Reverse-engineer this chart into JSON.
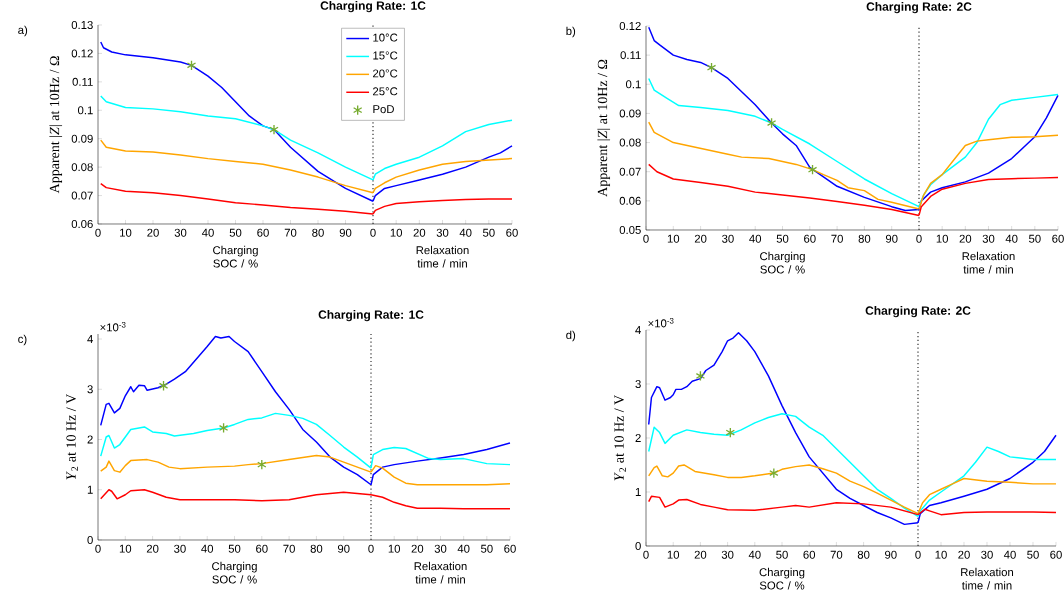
{
  "chart_data": [
    {
      "type": "line",
      "title": "Charging Rate: 1C",
      "ylabel": "Apparent |*Z*| at 10Hz / Ω",
      "xlabel": "Charging SOC / %",
      "annotations": [
        "a)"
      ],
      "xlim": [
        0,
        100
      ],
      "xticks": [
        0,
        10,
        20,
        30,
        40,
        50,
        60,
        70,
        80,
        90
      ],
      "ylim": [
        0.06,
        0.13
      ],
      "yticks": [
        0.06,
        0.07,
        0.08,
        0.09,
        0.1,
        0.11,
        0.12,
        0.13
      ],
      "legend": "top right",
      "ref_lines": [
        {
          "axis": "x",
          "value": 100,
          "line_style": "dotted",
          "color": "#333333"
        }
      ],
      "series": [
        {
          "name": "10°C",
          "color": "#0000ff",
          "x": [
            1,
            2,
            5,
            10,
            20,
            30,
            34,
            40,
            45,
            50,
            55,
            60,
            64,
            70,
            80,
            90,
            100
          ],
          "values": [
            0.124,
            0.122,
            0.1205,
            0.1195,
            0.1185,
            0.117,
            0.1158,
            0.112,
            0.108,
            0.103,
            0.098,
            0.0945,
            0.0932,
            0.087,
            0.0785,
            0.0725,
            0.068
          ]
        },
        {
          "name": "15°C",
          "color": "#00ffff",
          "x": [
            1,
            3,
            10,
            20,
            30,
            40,
            50,
            60,
            64,
            70,
            80,
            90,
            100
          ],
          "values": [
            0.105,
            0.103,
            0.101,
            0.1005,
            0.0995,
            0.098,
            0.097,
            0.0945,
            0.0932,
            0.0895,
            0.085,
            0.08,
            0.0755
          ]
        },
        {
          "name": "20°C",
          "color": "#ffa500",
          "x": [
            1,
            3,
            10,
            20,
            30,
            40,
            50,
            60,
            70,
            80,
            90,
            100
          ],
          "values": [
            0.0895,
            0.087,
            0.0857,
            0.0853,
            0.0843,
            0.083,
            0.082,
            0.081,
            0.079,
            0.0765,
            0.0735,
            0.071
          ]
        },
        {
          "name": "25°C",
          "color": "#ff0000",
          "x": [
            1,
            3,
            10,
            20,
            30,
            40,
            50,
            60,
            70,
            80,
            90,
            100
          ],
          "values": [
            0.0742,
            0.0728,
            0.0715,
            0.071,
            0.07,
            0.0688,
            0.0675,
            0.0667,
            0.0658,
            0.0652,
            0.0645,
            0.0635
          ]
        },
        {
          "name": "PoD",
          "type": "scatter",
          "marker": "cross",
          "color": "#77ac30",
          "x": [
            34,
            64
          ],
          "values": [
            0.1158,
            0.0932
          ]
        }
      ]
    },
    {
      "type": "line",
      "xlabel": "Relaxation time / min",
      "xlim": [
        0,
        60
      ],
      "xticks": [
        0,
        10,
        20,
        30,
        40,
        50,
        60
      ],
      "ylim": [
        0.06,
        0.13
      ],
      "tick_labels": "x",
      "series": [
        {
          "color": "#0000ff",
          "x": [
            0,
            1,
            5,
            10,
            20,
            30,
            40,
            50,
            55,
            60
          ],
          "values": [
            0.068,
            0.07,
            0.0725,
            0.0735,
            0.0755,
            0.0775,
            0.08,
            0.0835,
            0.085,
            0.0875
          ]
        },
        {
          "color": "#00ffff",
          "x": [
            0,
            1,
            5,
            10,
            20,
            30,
            40,
            50,
            60
          ],
          "values": [
            0.0755,
            0.0775,
            0.0795,
            0.081,
            0.0835,
            0.0875,
            0.0925,
            0.095,
            0.0965
          ]
        },
        {
          "color": "#ffa500",
          "x": [
            0,
            1,
            5,
            10,
            20,
            30,
            40,
            50,
            60
          ],
          "values": [
            0.071,
            0.0725,
            0.0745,
            0.0765,
            0.079,
            0.081,
            0.082,
            0.0825,
            0.083
          ]
        },
        {
          "color": "#ff0000",
          "x": [
            0,
            1,
            5,
            10,
            20,
            30,
            40,
            50,
            60
          ],
          "values": [
            0.0635,
            0.0648,
            0.0662,
            0.0672,
            0.0678,
            0.0683,
            0.0686,
            0.0688,
            0.0688
          ]
        }
      ]
    },
    {
      "type": "line",
      "title": "Charging Rate: 2C",
      "ylabel": "Apparent |*Z*| at 10Hz / Ω",
      "xlabel": "Charging SOC / %",
      "annotations": [
        "b)"
      ],
      "xlim": [
        0,
        100
      ],
      "xticks": [
        0,
        10,
        20,
        30,
        40,
        50,
        60,
        70,
        80,
        90
      ],
      "ylim": [
        0.05,
        0.12
      ],
      "yticks": [
        0.05,
        0.06,
        0.07,
        0.08,
        0.09,
        0.1,
        0.11,
        0.12
      ],
      "ref_lines": [
        {
          "axis": "x",
          "value": 100,
          "line_style": "dotted",
          "color": "#333333"
        }
      ],
      "series": [
        {
          "color": "#0000ff",
          "x": [
            1,
            3,
            5,
            10,
            15,
            20,
            24,
            30,
            40,
            46,
            50,
            55,
            60,
            70,
            80,
            90,
            95,
            100
          ],
          "values": [
            0.1196,
            0.115,
            0.1135,
            0.11,
            0.1085,
            0.1075,
            0.1057,
            0.102,
            0.093,
            0.0867,
            0.083,
            0.079,
            0.0715,
            0.065,
            0.0612,
            0.058,
            0.0567,
            0.057
          ]
        },
        {
          "color": "#00ffff",
          "x": [
            1,
            3,
            8,
            12,
            20,
            30,
            40,
            46,
            50,
            60,
            70,
            80,
            90,
            100
          ],
          "values": [
            0.102,
            0.098,
            0.095,
            0.0927,
            0.092,
            0.091,
            0.089,
            0.0867,
            0.0845,
            0.0795,
            0.0735,
            0.0675,
            0.0625,
            0.058
          ]
        },
        {
          "color": "#ffa500",
          "x": [
            1,
            3,
            10,
            20,
            30,
            35,
            45,
            55,
            61,
            65,
            70,
            74,
            80,
            85,
            90,
            100
          ],
          "values": [
            0.087,
            0.0835,
            0.08,
            0.078,
            0.076,
            0.075,
            0.0745,
            0.0725,
            0.0707,
            0.069,
            0.067,
            0.0645,
            0.0635,
            0.0605,
            0.0595,
            0.0572
          ]
        },
        {
          "color": "#ff0000",
          "x": [
            1,
            4,
            10,
            20,
            30,
            40,
            50,
            60,
            70,
            80,
            90,
            100
          ],
          "values": [
            0.0725,
            0.07,
            0.0675,
            0.0663,
            0.065,
            0.063,
            0.062,
            0.061,
            0.0598,
            0.0585,
            0.057,
            0.055
          ]
        },
        {
          "type": "scatter",
          "marker": "cross",
          "color": "#77ac30",
          "x": [
            24,
            46,
            61
          ],
          "values": [
            0.1057,
            0.0867,
            0.0707
          ]
        }
      ]
    },
    {
      "type": "line",
      "xlabel": "Relaxation time / min",
      "xlim": [
        0,
        60
      ],
      "xticks": [
        0,
        10,
        20,
        30,
        40,
        50,
        60
      ],
      "ylim": [
        0.05,
        0.12
      ],
      "tick_labels": "x",
      "series": [
        {
          "color": "#0000ff",
          "x": [
            0,
            1,
            5,
            10,
            20,
            30,
            40,
            50,
            55,
            60
          ],
          "values": [
            0.057,
            0.06,
            0.063,
            0.0645,
            0.0665,
            0.0695,
            0.0745,
            0.082,
            0.0885,
            0.0962
          ]
        },
        {
          "color": "#00ffff",
          "x": [
            0,
            2,
            5,
            10,
            20,
            25,
            30,
            35,
            40,
            50,
            60
          ],
          "values": [
            0.058,
            0.062,
            0.0655,
            0.069,
            0.075,
            0.08,
            0.088,
            0.093,
            0.0945,
            0.0955,
            0.0965
          ]
        },
        {
          "color": "#ffa500",
          "x": [
            0,
            2,
            5,
            10,
            15,
            20,
            25,
            30,
            40,
            50,
            60
          ],
          "values": [
            0.0572,
            0.062,
            0.066,
            0.069,
            0.074,
            0.079,
            0.0805,
            0.081,
            0.0818,
            0.082,
            0.0825
          ]
        },
        {
          "color": "#ff0000",
          "x": [
            0,
            1,
            5,
            10,
            20,
            30,
            40,
            50,
            60
          ],
          "values": [
            0.055,
            0.058,
            0.0615,
            0.064,
            0.066,
            0.0673,
            0.0676,
            0.0678,
            0.068
          ]
        }
      ]
    },
    {
      "type": "line",
      "title": "Charging Rate: 1C",
      "ylabel": "*Y*$_{2}$ at 10 Hz / V",
      "xlabel": "Charging SOC / %",
      "annotations": [
        "c)",
        "×10$^{-3}$"
      ],
      "xlim": [
        0,
        100
      ],
      "xticks": [
        0,
        10,
        20,
        30,
        40,
        50,
        60,
        70,
        80,
        90
      ],
      "ylim": [
        0,
        4.1
      ],
      "yticks": [
        0,
        1,
        2,
        3,
        4
      ],
      "ref_lines": [
        {
          "axis": "x",
          "value": 100,
          "line_style": "dotted",
          "color": "#333333"
        }
      ],
      "series": [
        {
          "color": "#0000ff",
          "x": [
            1,
            3,
            4,
            6,
            8,
            10,
            12,
            13,
            15,
            17,
            18,
            22,
            25,
            28,
            32,
            40,
            43,
            45,
            48,
            50,
            55,
            60,
            65,
            70,
            75,
            80,
            85,
            90,
            95,
            100
          ],
          "values": [
            2.28,
            2.7,
            2.72,
            2.53,
            2.62,
            2.87,
            3.05,
            2.95,
            3.08,
            3.07,
            2.98,
            3.03,
            3.1,
            3.2,
            3.35,
            3.85,
            4.05,
            4.02,
            4.05,
            3.95,
            3.75,
            3.35,
            2.95,
            2.6,
            2.2,
            1.95,
            1.65,
            1.45,
            1.3,
            1.1
          ]
        },
        {
          "color": "#00ffff",
          "x": [
            1,
            3,
            4,
            6,
            8,
            10,
            12,
            17,
            20,
            25,
            28,
            35,
            40,
            46,
            50,
            55,
            60,
            65,
            70,
            75,
            80,
            85,
            90,
            95,
            100
          ],
          "values": [
            1.67,
            2.05,
            2.08,
            1.83,
            1.9,
            2.05,
            2.2,
            2.25,
            2.15,
            2.12,
            2.07,
            2.12,
            2.18,
            2.23,
            2.3,
            2.4,
            2.43,
            2.52,
            2.48,
            2.42,
            2.3,
            2.08,
            1.85,
            1.65,
            1.43
          ]
        },
        {
          "color": "#ffa500",
          "x": [
            1,
            3,
            4,
            6,
            8,
            10,
            12,
            18,
            22,
            26,
            30,
            40,
            50,
            55,
            60,
            70,
            80,
            85,
            90,
            100
          ],
          "values": [
            1.37,
            1.45,
            1.57,
            1.38,
            1.35,
            1.48,
            1.58,
            1.6,
            1.55,
            1.45,
            1.42,
            1.45,
            1.47,
            1.5,
            1.52,
            1.6,
            1.68,
            1.65,
            1.55,
            1.35
          ]
        },
        {
          "color": "#ff0000",
          "x": [
            1,
            4,
            5,
            7,
            10,
            12,
            17,
            20,
            25,
            30,
            40,
            50,
            60,
            70,
            80,
            90,
            100
          ],
          "values": [
            0.82,
            1.0,
            0.97,
            0.82,
            0.9,
            0.98,
            1.0,
            0.95,
            0.85,
            0.8,
            0.8,
            0.8,
            0.78,
            0.8,
            0.9,
            0.95,
            0.9
          ]
        },
        {
          "type": "scatter",
          "marker": "cross",
          "color": "#77ac30",
          "x": [
            24,
            46,
            60
          ],
          "values": [
            3.07,
            2.23,
            1.5
          ]
        }
      ]
    },
    {
      "type": "line",
      "xlabel": "Relaxation time / min",
      "xlim": [
        0,
        60
      ],
      "xticks": [
        0,
        10,
        20,
        30,
        40,
        50,
        60
      ],
      "ylim": [
        0,
        4.1
      ],
      "tick_labels": "x",
      "series": [
        {
          "color": "#0000ff",
          "x": [
            0,
            1,
            5,
            10,
            20,
            30,
            40,
            50,
            60
          ],
          "values": [
            1.1,
            1.3,
            1.45,
            1.5,
            1.57,
            1.63,
            1.7,
            1.8,
            1.93
          ]
        },
        {
          "color": "#00ffff",
          "x": [
            0,
            1,
            5,
            10,
            15,
            20,
            25,
            30,
            40,
            50,
            60
          ],
          "values": [
            1.43,
            1.7,
            1.8,
            1.84,
            1.82,
            1.72,
            1.62,
            1.6,
            1.62,
            1.52,
            1.5
          ]
        },
        {
          "color": "#ffa500",
          "x": [
            0,
            2,
            5,
            10,
            15,
            20,
            30,
            40,
            50,
            60
          ],
          "values": [
            1.35,
            1.48,
            1.43,
            1.25,
            1.13,
            1.1,
            1.1,
            1.1,
            1.1,
            1.12
          ]
        },
        {
          "color": "#ff0000",
          "x": [
            0,
            5,
            10,
            15,
            20,
            30,
            40,
            50,
            60
          ],
          "values": [
            0.9,
            0.85,
            0.75,
            0.68,
            0.63,
            0.63,
            0.62,
            0.62,
            0.62
          ]
        }
      ]
    },
    {
      "type": "line",
      "title": "Charging Rate: 2C",
      "ylabel": "*Y*$_{2}$ at 10 Hz / V",
      "xlabel": "Charging SOC / %",
      "annotations": [
        "d)",
        "×10$^{-3}$"
      ],
      "xlim": [
        0,
        100
      ],
      "xticks": [
        0,
        10,
        20,
        30,
        40,
        50,
        60,
        70,
        80,
        90
      ],
      "ylim": [
        0,
        4
      ],
      "yticks": [
        0,
        1,
        2,
        3,
        4
      ],
      "ref_lines": [
        {
          "axis": "x",
          "value": 100,
          "line_style": "dotted",
          "color": "#333333"
        }
      ],
      "series": [
        {
          "color": "#0000ff",
          "x": [
            1,
            2,
            4,
            5,
            7,
            9,
            10,
            11,
            13,
            15,
            17,
            20,
            22,
            25,
            28,
            30,
            32,
            34,
            37,
            40,
            45,
            50,
            55,
            60,
            65,
            70,
            75,
            80,
            85,
            90,
            95,
            100
          ],
          "values": [
            2.25,
            2.75,
            2.95,
            2.93,
            2.7,
            2.75,
            2.8,
            2.9,
            2.9,
            2.95,
            3.05,
            3.1,
            3.25,
            3.35,
            3.6,
            3.8,
            3.85,
            3.95,
            3.8,
            3.6,
            3.15,
            2.6,
            2.1,
            1.65,
            1.35,
            1.05,
            0.88,
            0.75,
            0.62,
            0.52,
            0.4,
            0.43
          ]
        },
        {
          "color": "#00ffff",
          "x": [
            1,
            3,
            5,
            7,
            10,
            15,
            20,
            25,
            30,
            35,
            40,
            45,
            50,
            55,
            60,
            65,
            70,
            75,
            80,
            85,
            90,
            95,
            100
          ],
          "values": [
            1.75,
            2.2,
            2.1,
            1.9,
            2.05,
            2.15,
            2.1,
            2.07,
            2.05,
            2.15,
            2.28,
            2.38,
            2.45,
            2.4,
            2.2,
            2.05,
            1.8,
            1.55,
            1.3,
            1.05,
            0.88,
            0.7,
            0.55
          ]
        },
        {
          "color": "#ffa500",
          "x": [
            1,
            3,
            4,
            6,
            8,
            10,
            12,
            14,
            18,
            25,
            30,
            35,
            40,
            47,
            50,
            55,
            60,
            65,
            70,
            75,
            80,
            85,
            90,
            95,
            100
          ],
          "values": [
            1.3,
            1.45,
            1.48,
            1.3,
            1.28,
            1.35,
            1.48,
            1.5,
            1.38,
            1.32,
            1.27,
            1.27,
            1.3,
            1.35,
            1.42,
            1.47,
            1.5,
            1.43,
            1.35,
            1.2,
            1.1,
            0.98,
            0.85,
            0.72,
            0.6
          ]
        },
        {
          "color": "#ff0000",
          "x": [
            1,
            2,
            5,
            7,
            10,
            12,
            15,
            20,
            25,
            30,
            40,
            50,
            55,
            60,
            70,
            80,
            90,
            100
          ],
          "values": [
            0.82,
            0.92,
            0.9,
            0.72,
            0.78,
            0.85,
            0.86,
            0.77,
            0.72,
            0.67,
            0.66,
            0.72,
            0.75,
            0.72,
            0.8,
            0.78,
            0.72,
            0.58
          ]
        },
        {
          "type": "scatter",
          "marker": "cross",
          "color": "#77ac30",
          "x": [
            20,
            31,
            47
          ],
          "values": [
            3.15,
            2.1,
            1.35
          ]
        }
      ]
    },
    {
      "type": "line",
      "xlabel": "Relaxation time / min",
      "xlim": [
        0,
        60
      ],
      "xticks": [
        0,
        10,
        20,
        30,
        40,
        50,
        60
      ],
      "ylim": [
        0,
        4
      ],
      "tick_labels": "x",
      "series": [
        {
          "color": "#0000ff",
          "x": [
            0,
            1,
            5,
            10,
            20,
            30,
            40,
            50,
            55,
            60
          ],
          "values": [
            0.43,
            0.6,
            0.75,
            0.8,
            0.92,
            1.05,
            1.25,
            1.55,
            1.75,
            2.05
          ]
        },
        {
          "color": "#00ffff",
          "x": [
            0,
            1,
            5,
            10,
            20,
            25,
            30,
            35,
            40,
            50,
            60
          ],
          "values": [
            0.55,
            0.65,
            0.85,
            1.0,
            1.3,
            1.55,
            1.83,
            1.75,
            1.65,
            1.6,
            1.6
          ]
        },
        {
          "color": "#ffa500",
          "x": [
            0,
            2,
            5,
            10,
            15,
            20,
            30,
            40,
            50,
            60
          ],
          "values": [
            0.6,
            0.8,
            0.95,
            1.05,
            1.15,
            1.25,
            1.2,
            1.18,
            1.15,
            1.15
          ]
        },
        {
          "color": "#ff0000",
          "x": [
            0,
            3,
            5,
            10,
            20,
            30,
            40,
            50,
            60
          ],
          "values": [
            0.58,
            0.68,
            0.65,
            0.58,
            0.62,
            0.63,
            0.63,
            0.63,
            0.62
          ]
        }
      ]
    }
  ]
}
